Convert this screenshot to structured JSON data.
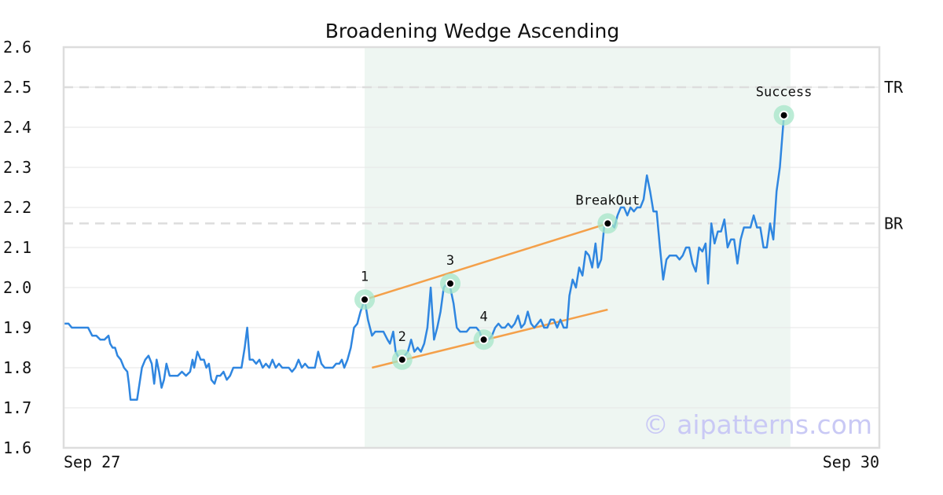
{
  "chart_data": {
    "type": "line",
    "title": "Broadening Wedge Ascending",
    "xlabel": "",
    "ylabel": "",
    "ylim": [
      1.6,
      2.6
    ],
    "yticks": [
      "1.6",
      "1.7",
      "1.8",
      "1.9",
      "2.0",
      "2.1",
      "2.2",
      "2.3",
      "2.4",
      "2.5",
      "2.6"
    ],
    "xticks": [
      "Sep 27",
      "Sep 30"
    ],
    "x_range": [
      0,
      1
    ],
    "grid": true,
    "colors": {
      "line": "#2f86e0",
      "trendline": "#f4a04a",
      "marker_halo": "#a6e6c8",
      "pattern_zone": "#eef6f2",
      "level": "#dddddd",
      "watermark": "#c9c9f5"
    },
    "pattern_zone": [
      0.369,
      0.891
    ],
    "levels": [
      {
        "label": "TR",
        "value": 2.5
      },
      {
        "label": "BR",
        "value": 2.16
      }
    ],
    "series": [
      {
        "values": [
          [
            0.0,
            1.91
          ],
          [
            0.006,
            1.91
          ],
          [
            0.01,
            1.9
          ],
          [
            0.02,
            1.9
          ],
          [
            0.03,
            1.9
          ],
          [
            0.035,
            1.88
          ],
          [
            0.04,
            1.88
          ],
          [
            0.045,
            1.87
          ],
          [
            0.05,
            1.87
          ],
          [
            0.055,
            1.88
          ],
          [
            0.057,
            1.86
          ],
          [
            0.06,
            1.85
          ],
          [
            0.063,
            1.85
          ],
          [
            0.066,
            1.83
          ],
          [
            0.07,
            1.82
          ],
          [
            0.074,
            1.8
          ],
          [
            0.078,
            1.79
          ],
          [
            0.08,
            1.76
          ],
          [
            0.082,
            1.72
          ],
          [
            0.087,
            1.72
          ],
          [
            0.09,
            1.72
          ],
          [
            0.093,
            1.76
          ],
          [
            0.096,
            1.8
          ],
          [
            0.1,
            1.82
          ],
          [
            0.104,
            1.83
          ],
          [
            0.108,
            1.81
          ],
          [
            0.111,
            1.76
          ],
          [
            0.114,
            1.82
          ],
          [
            0.117,
            1.79
          ],
          [
            0.12,
            1.75
          ],
          [
            0.123,
            1.77
          ],
          [
            0.126,
            1.81
          ],
          [
            0.13,
            1.78
          ],
          [
            0.135,
            1.78
          ],
          [
            0.14,
            1.78
          ],
          [
            0.145,
            1.79
          ],
          [
            0.15,
            1.78
          ],
          [
            0.155,
            1.79
          ],
          [
            0.158,
            1.82
          ],
          [
            0.16,
            1.8
          ],
          [
            0.164,
            1.84
          ],
          [
            0.168,
            1.82
          ],
          [
            0.172,
            1.82
          ],
          [
            0.175,
            1.8
          ],
          [
            0.178,
            1.81
          ],
          [
            0.181,
            1.77
          ],
          [
            0.185,
            1.76
          ],
          [
            0.188,
            1.78
          ],
          [
            0.192,
            1.78
          ],
          [
            0.196,
            1.79
          ],
          [
            0.2,
            1.77
          ],
          [
            0.204,
            1.78
          ],
          [
            0.208,
            1.8
          ],
          [
            0.213,
            1.8
          ],
          [
            0.218,
            1.8
          ],
          [
            0.222,
            1.85
          ],
          [
            0.225,
            1.9
          ],
          [
            0.228,
            1.82
          ],
          [
            0.232,
            1.82
          ],
          [
            0.236,
            1.81
          ],
          [
            0.24,
            1.82
          ],
          [
            0.244,
            1.8
          ],
          [
            0.248,
            1.81
          ],
          [
            0.252,
            1.8
          ],
          [
            0.256,
            1.82
          ],
          [
            0.26,
            1.8
          ],
          [
            0.264,
            1.81
          ],
          [
            0.268,
            1.8
          ],
          [
            0.272,
            1.8
          ],
          [
            0.276,
            1.8
          ],
          [
            0.28,
            1.79
          ],
          [
            0.284,
            1.8
          ],
          [
            0.288,
            1.82
          ],
          [
            0.292,
            1.8
          ],
          [
            0.296,
            1.81
          ],
          [
            0.3,
            1.8
          ],
          [
            0.304,
            1.8
          ],
          [
            0.308,
            1.8
          ],
          [
            0.312,
            1.84
          ],
          [
            0.316,
            1.81
          ],
          [
            0.32,
            1.8
          ],
          [
            0.325,
            1.8
          ],
          [
            0.33,
            1.8
          ],
          [
            0.334,
            1.81
          ],
          [
            0.338,
            1.81
          ],
          [
            0.341,
            1.82
          ],
          [
            0.344,
            1.8
          ],
          [
            0.348,
            1.82
          ],
          [
            0.352,
            1.85
          ],
          [
            0.356,
            1.9
          ],
          [
            0.36,
            1.91
          ],
          [
            0.364,
            1.94
          ],
          [
            0.369,
            1.97
          ],
          [
            0.373,
            1.92
          ],
          [
            0.378,
            1.88
          ],
          [
            0.382,
            1.89
          ],
          [
            0.387,
            1.89
          ],
          [
            0.392,
            1.89
          ],
          [
            0.397,
            1.87
          ],
          [
            0.4,
            1.86
          ],
          [
            0.404,
            1.89
          ],
          [
            0.407,
            1.84
          ],
          [
            0.412,
            1.82
          ],
          [
            0.415,
            1.82
          ],
          [
            0.418,
            1.83
          ],
          [
            0.422,
            1.84
          ],
          [
            0.426,
            1.87
          ],
          [
            0.43,
            1.84
          ],
          [
            0.434,
            1.85
          ],
          [
            0.438,
            1.84
          ],
          [
            0.442,
            1.86
          ],
          [
            0.446,
            1.9
          ],
          [
            0.45,
            2.0
          ],
          [
            0.454,
            1.87
          ],
          [
            0.458,
            1.9
          ],
          [
            0.462,
            1.94
          ],
          [
            0.466,
            2.0
          ],
          [
            0.47,
            2.01
          ],
          [
            0.474,
            2.0
          ],
          [
            0.478,
            1.96
          ],
          [
            0.482,
            1.9
          ],
          [
            0.486,
            1.89
          ],
          [
            0.49,
            1.89
          ],
          [
            0.494,
            1.89
          ],
          [
            0.498,
            1.9
          ],
          [
            0.502,
            1.9
          ],
          [
            0.506,
            1.9
          ],
          [
            0.51,
            1.89
          ],
          [
            0.513,
            1.87
          ],
          [
            0.517,
            1.87
          ],
          [
            0.521,
            1.87
          ],
          [
            0.525,
            1.88
          ],
          [
            0.529,
            1.9
          ],
          [
            0.533,
            1.91
          ],
          [
            0.537,
            1.9
          ],
          [
            0.541,
            1.9
          ],
          [
            0.545,
            1.91
          ],
          [
            0.549,
            1.9
          ],
          [
            0.553,
            1.91
          ],
          [
            0.557,
            1.93
          ],
          [
            0.561,
            1.9
          ],
          [
            0.565,
            1.91
          ],
          [
            0.569,
            1.94
          ],
          [
            0.573,
            1.91
          ],
          [
            0.577,
            1.9
          ],
          [
            0.581,
            1.91
          ],
          [
            0.585,
            1.92
          ],
          [
            0.589,
            1.9
          ],
          [
            0.593,
            1.9
          ],
          [
            0.597,
            1.92
          ],
          [
            0.601,
            1.92
          ],
          [
            0.605,
            1.9
          ],
          [
            0.609,
            1.92
          ],
          [
            0.613,
            1.9
          ],
          [
            0.617,
            1.9
          ],
          [
            0.62,
            1.98
          ],
          [
            0.624,
            2.02
          ],
          [
            0.628,
            2.0
          ],
          [
            0.632,
            2.05
          ],
          [
            0.636,
            2.03
          ],
          [
            0.64,
            2.09
          ],
          [
            0.644,
            2.08
          ],
          [
            0.648,
            2.05
          ],
          [
            0.652,
            2.11
          ],
          [
            0.655,
            2.05
          ],
          [
            0.659,
            2.07
          ],
          [
            0.663,
            2.16
          ],
          [
            0.667,
            2.16
          ],
          [
            0.671,
            2.16
          ],
          [
            0.675,
            2.15
          ],
          [
            0.679,
            2.18
          ],
          [
            0.683,
            2.2
          ],
          [
            0.687,
            2.2
          ],
          [
            0.691,
            2.18
          ],
          [
            0.695,
            2.2
          ],
          [
            0.699,
            2.19
          ],
          [
            0.703,
            2.2
          ],
          [
            0.707,
            2.2
          ],
          [
            0.711,
            2.22
          ],
          [
            0.715,
            2.28
          ],
          [
            0.719,
            2.24
          ],
          [
            0.723,
            2.19
          ],
          [
            0.727,
            2.19
          ],
          [
            0.731,
            2.1
          ],
          [
            0.735,
            2.02
          ],
          [
            0.739,
            2.07
          ],
          [
            0.743,
            2.08
          ],
          [
            0.747,
            2.08
          ],
          [
            0.751,
            2.08
          ],
          [
            0.755,
            2.07
          ],
          [
            0.759,
            2.08
          ],
          [
            0.763,
            2.1
          ],
          [
            0.767,
            2.1
          ],
          [
            0.771,
            2.06
          ],
          [
            0.775,
            2.04
          ],
          [
            0.779,
            2.1
          ],
          [
            0.783,
            2.09
          ],
          [
            0.787,
            2.11
          ],
          [
            0.79,
            2.01
          ],
          [
            0.794,
            2.16
          ],
          [
            0.798,
            2.11
          ],
          [
            0.802,
            2.14
          ],
          [
            0.806,
            2.14
          ],
          [
            0.81,
            2.17
          ],
          [
            0.814,
            2.1
          ],
          [
            0.818,
            2.12
          ],
          [
            0.822,
            2.12
          ],
          [
            0.826,
            2.06
          ],
          [
            0.83,
            2.12
          ],
          [
            0.834,
            2.15
          ],
          [
            0.838,
            2.15
          ],
          [
            0.842,
            2.15
          ],
          [
            0.846,
            2.18
          ],
          [
            0.85,
            2.15
          ],
          [
            0.854,
            2.15
          ],
          [
            0.858,
            2.1
          ],
          [
            0.862,
            2.1
          ],
          [
            0.866,
            2.16
          ],
          [
            0.87,
            2.12
          ],
          [
            0.874,
            2.24
          ],
          [
            0.878,
            2.3
          ],
          [
            0.883,
            2.43
          ]
        ]
      }
    ],
    "trendlines": [
      {
        "from": [
          0.378,
          1.8
        ],
        "to": [
          0.667,
          1.945
        ]
      },
      {
        "from": [
          0.369,
          1.97
        ],
        "to": [
          0.667,
          2.16
        ]
      }
    ],
    "annotations": [
      {
        "label": "1",
        "x": 0.369,
        "y": 1.97
      },
      {
        "label": "2",
        "x": 0.415,
        "y": 1.82
      },
      {
        "label": "3",
        "x": 0.474,
        "y": 2.01
      },
      {
        "label": "4",
        "x": 0.515,
        "y": 1.87
      },
      {
        "label": "BreakOut",
        "x": 0.667,
        "y": 2.16
      },
      {
        "label": "Success",
        "x": 0.883,
        "y": 2.43
      }
    ],
    "watermark": "© aipatterns.com"
  }
}
